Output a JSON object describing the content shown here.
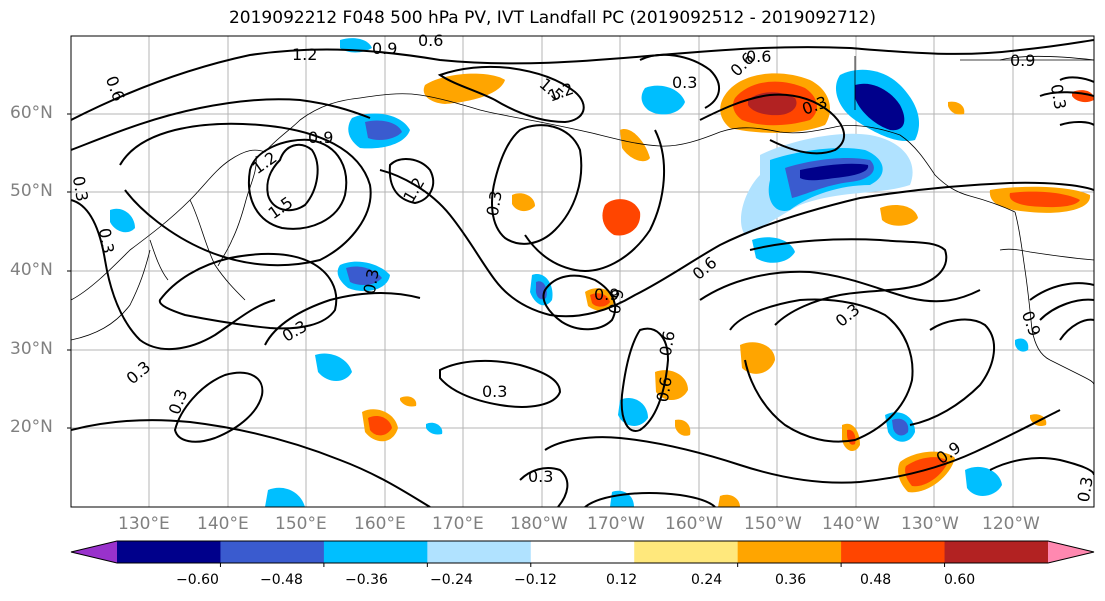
{
  "title": "2019092212 F048 500 hPa PV, IVT Landfall PC (2019092512 - 2019092712)",
  "latitude_labels": [
    "60°N",
    "50°N",
    "40°N",
    "30°N",
    "20°N"
  ],
  "longitude_labels": [
    "130°E",
    "140°E",
    "150°E",
    "160°E",
    "170°E",
    "180°W",
    "170°W",
    "160°W",
    "150°W",
    "140°W",
    "130°W",
    "120°W"
  ],
  "contour_labels": [
    "1.2",
    "0.9",
    "0.6",
    "0.6",
    "0.3",
    "1.5",
    "1.2",
    "0.3",
    "0.6",
    "0.3",
    "0.9",
    "0.9",
    "0.3",
    "1.2",
    "1.5",
    "1.2",
    "0.3",
    "0.3",
    "0.3",
    "0.9",
    "0.6",
    "0.3",
    "0.3",
    "0.3",
    "0.3",
    "0.6",
    "0.9",
    "0.3",
    "0.9",
    "0.6",
    "0.6",
    "0.3"
  ],
  "colorbar": {
    "ticks": [
      "−0.60",
      "−0.48",
      "−0.36",
      "−0.24",
      "−0.12",
      "0.12",
      "0.24",
      "0.36",
      "0.48",
      "0.60"
    ],
    "colors": [
      "#9932cc",
      "#00008b",
      "#3a5bcf",
      "#00bfff",
      "#b0e2ff",
      "#ffffff",
      "#ffe87c",
      "#ffa500",
      "#ff4500",
      "#b22222",
      "#ff88b0"
    ]
  }
}
